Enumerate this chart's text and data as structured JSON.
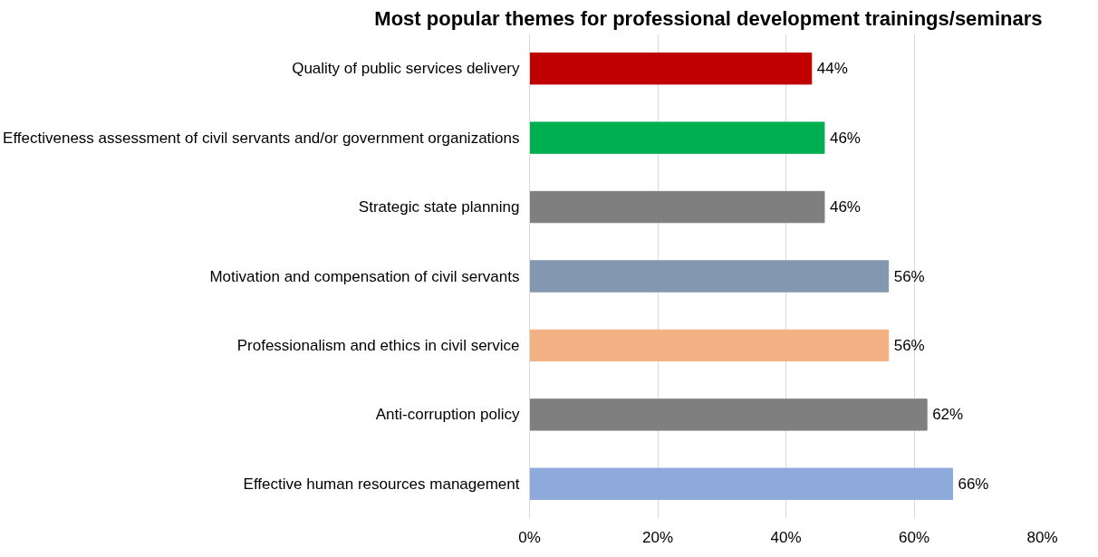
{
  "chart_data": {
    "type": "bar",
    "orientation": "horizontal",
    "title": "Most popular themes for professional development trainings/seminars",
    "categories": [
      "Quality of public services delivery",
      "Effectiveness assessment of civil servants and/or government organizations",
      "Strategic state planning",
      "Motivation and compensation of civil servants",
      "Professionalism and ethics in civil service",
      "Anti-corruption policy",
      "Effective human resources management"
    ],
    "values": [
      44,
      46,
      46,
      56,
      56,
      62,
      66
    ],
    "value_labels": [
      "44%",
      "46%",
      "46%",
      "56%",
      "56%",
      "62%",
      "66%"
    ],
    "colors": [
      "#c00000",
      "#00b050",
      "#7f7f7f",
      "#8497b0",
      "#f4b183",
      "#7f7f7f",
      "#8eaadb"
    ],
    "xlim": [
      0,
      80
    ],
    "xticks": [
      {
        "value": 0,
        "label": "0%"
      },
      {
        "value": 20,
        "label": "20%"
      },
      {
        "value": 40,
        "label": "40%"
      },
      {
        "value": 60,
        "label": "60%"
      },
      {
        "value": 80,
        "label": "80%"
      }
    ],
    "grid": "x"
  }
}
